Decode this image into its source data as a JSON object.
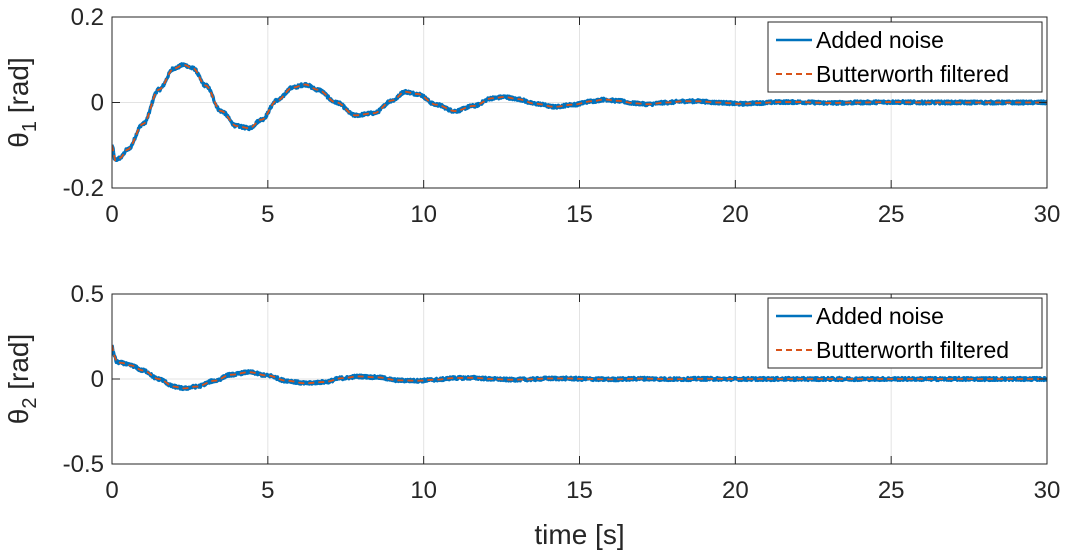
{
  "chart_data": [
    {
      "type": "line",
      "ylabel": "θ1 [rad]",
      "ylabel_main": "θ",
      "ylabel_sub": "1",
      "ylabel_unit": " [rad]",
      "xlabel": "",
      "xlim": [
        0,
        30
      ],
      "ylim": [
        -0.2,
        0.2
      ],
      "xticks": [
        0,
        5,
        10,
        15,
        20,
        25,
        30
      ],
      "xtick_labels": [
        "0",
        "5",
        "10",
        "15",
        "20",
        "25",
        "30"
      ],
      "yticks": [
        -0.2,
        0,
        0.2
      ],
      "ytick_labels": [
        "-0.2",
        "0",
        "0.2"
      ],
      "grid": true,
      "legend_position": "top-right",
      "series": [
        {
          "name": "Added noise",
          "color": "#0072BD",
          "style": "solid",
          "x": [
            0,
            0.1,
            0.25,
            0.5,
            1.0,
            1.5,
            2.0,
            2.3,
            2.6,
            3.0,
            3.5,
            4.0,
            4.4,
            4.8,
            5.3,
            5.8,
            6.2,
            6.6,
            7.2,
            7.8,
            8.4,
            9.0,
            9.4,
            9.8,
            10.4,
            11.0,
            11.6,
            12.2,
            12.6,
            13.0,
            13.6,
            14.2,
            14.8,
            15.4,
            15.8,
            16.2,
            16.8,
            17.2,
            17.8,
            18.4,
            18.8,
            19.4,
            20.2,
            20.8,
            21.4,
            22.0,
            23.0,
            24.0,
            25.0,
            26.0,
            27.0,
            28.0,
            29.0,
            30.0
          ],
          "y": [
            -0.1,
            -0.135,
            -0.13,
            -0.11,
            -0.05,
            0.03,
            0.08,
            0.088,
            0.08,
            0.04,
            -0.02,
            -0.055,
            -0.06,
            -0.04,
            0.005,
            0.035,
            0.042,
            0.03,
            0.0,
            -0.03,
            -0.025,
            0.005,
            0.025,
            0.02,
            -0.005,
            -0.02,
            -0.008,
            0.01,
            0.013,
            0.008,
            -0.003,
            -0.01,
            -0.005,
            0.003,
            0.007,
            0.004,
            -0.002,
            -0.004,
            0.0,
            0.003,
            0.003,
            0.0,
            -0.003,
            -0.001,
            0.001,
            0.001,
            -0.001,
            0.0,
            0.001,
            0.0,
            0.0,
            0.0,
            0.0,
            0.0
          ]
        },
        {
          "name": "Butterworth filtered",
          "color": "#D95319",
          "style": "dashed",
          "x": [
            0,
            0.1,
            0.25,
            0.5,
            1.0,
            1.5,
            2.0,
            2.3,
            2.6,
            3.0,
            3.5,
            4.0,
            4.4,
            4.8,
            5.3,
            5.8,
            6.2,
            6.6,
            7.2,
            7.8,
            8.4,
            9.0,
            9.4,
            9.8,
            10.4,
            11.0,
            11.6,
            12.2,
            12.6,
            13.0,
            13.6,
            14.2,
            14.8,
            15.4,
            15.8,
            16.2,
            16.8,
            17.2,
            17.8,
            18.4,
            18.8,
            19.4,
            20.2,
            20.8,
            21.4,
            22.0,
            23.0,
            24.0,
            25.0,
            26.0,
            27.0,
            28.0,
            29.0,
            30.0
          ],
          "y": [
            -0.1,
            -0.135,
            -0.13,
            -0.11,
            -0.05,
            0.03,
            0.08,
            0.088,
            0.08,
            0.04,
            -0.02,
            -0.055,
            -0.06,
            -0.04,
            0.005,
            0.035,
            0.042,
            0.03,
            0.0,
            -0.03,
            -0.025,
            0.005,
            0.025,
            0.02,
            -0.005,
            -0.02,
            -0.008,
            0.01,
            0.013,
            0.008,
            -0.003,
            -0.01,
            -0.005,
            0.003,
            0.007,
            0.004,
            -0.002,
            -0.004,
            0.0,
            0.003,
            0.003,
            0.0,
            -0.003,
            -0.001,
            0.001,
            0.001,
            -0.001,
            0.0,
            0.001,
            0.0,
            0.0,
            0.0,
            0.0,
            0.0
          ]
        }
      ]
    },
    {
      "type": "line",
      "ylabel": "θ2 [rad]",
      "ylabel_main": "θ",
      "ylabel_sub": "2",
      "ylabel_unit": " [rad]",
      "xlabel": "time [s]",
      "xlim": [
        0,
        30
      ],
      "ylim": [
        -0.5,
        0.5
      ],
      "xticks": [
        0,
        5,
        10,
        15,
        20,
        25,
        30
      ],
      "xtick_labels": [
        "0",
        "5",
        "10",
        "15",
        "20",
        "25",
        "30"
      ],
      "yticks": [
        -0.5,
        0,
        0.5
      ],
      "ytick_labels": [
        "-0.5",
        "0",
        "0.5"
      ],
      "grid": true,
      "legend_position": "top-right",
      "series": [
        {
          "name": "Added noise",
          "color": "#0072BD",
          "style": "solid",
          "x": [
            0,
            0.05,
            0.15,
            0.3,
            0.6,
            1.0,
            1.5,
            2.0,
            2.3,
            2.7,
            3.3,
            3.8,
            4.4,
            5.0,
            5.6,
            6.2,
            6.8,
            7.4,
            7.9,
            8.5,
            9.2,
            9.8,
            10.4,
            11.0,
            11.6,
            12.2,
            12.8,
            13.4,
            14.0,
            14.6,
            15.2,
            16.0,
            17.0,
            18.0,
            19.0,
            20.0,
            22.0,
            24.0,
            26.0,
            28.0,
            30.0
          ],
          "y": [
            0.2,
            0.15,
            0.1,
            0.095,
            0.08,
            0.05,
            0.0,
            -0.045,
            -0.055,
            -0.045,
            -0.01,
            0.025,
            0.04,
            0.02,
            -0.01,
            -0.025,
            -0.018,
            0.005,
            0.015,
            0.01,
            -0.008,
            -0.01,
            -0.004,
            0.006,
            0.007,
            0.0,
            -0.004,
            -0.002,
            0.003,
            0.003,
            0.0,
            -0.002,
            0.002,
            -0.001,
            0.001,
            0.0,
            0.0,
            0.0,
            0.0,
            0.0,
            0.0
          ]
        },
        {
          "name": "Butterworth filtered",
          "color": "#D95319",
          "style": "dashed",
          "x": [
            0,
            0.05,
            0.15,
            0.3,
            0.6,
            1.0,
            1.5,
            2.0,
            2.3,
            2.7,
            3.3,
            3.8,
            4.4,
            5.0,
            5.6,
            6.2,
            6.8,
            7.4,
            7.9,
            8.5,
            9.2,
            9.8,
            10.4,
            11.0,
            11.6,
            12.2,
            12.8,
            13.4,
            14.0,
            14.6,
            15.2,
            16.0,
            17.0,
            18.0,
            19.0,
            20.0,
            22.0,
            24.0,
            26.0,
            28.0,
            30.0
          ],
          "y": [
            0.2,
            0.15,
            0.1,
            0.095,
            0.08,
            0.05,
            0.0,
            -0.045,
            -0.055,
            -0.045,
            -0.01,
            0.025,
            0.04,
            0.02,
            -0.01,
            -0.025,
            -0.018,
            0.005,
            0.015,
            0.01,
            -0.008,
            -0.01,
            -0.004,
            0.006,
            0.007,
            0.0,
            -0.004,
            -0.002,
            0.003,
            0.003,
            0.0,
            -0.002,
            0.002,
            -0.001,
            0.001,
            0.0,
            0.0,
            0.0,
            0.0,
            0.0,
            0.0
          ]
        }
      ]
    }
  ]
}
